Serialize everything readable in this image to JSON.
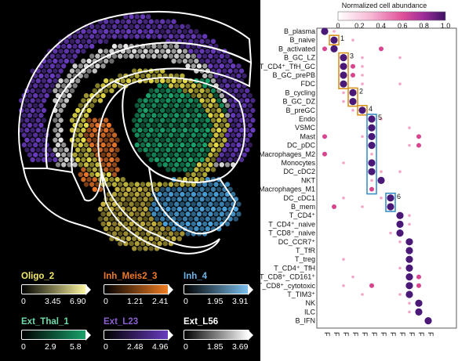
{
  "legends": [
    {
      "title": "Oligo_2",
      "color": "#f4ea6a",
      "ticks": [
        "0",
        "3.45",
        "6.90"
      ],
      "gradient": [
        "#000000",
        "#fff7a0"
      ]
    },
    {
      "title": "Inh_Meis2_3",
      "color": "#f07a2a",
      "ticks": [
        "0",
        "1.21",
        "2.41"
      ],
      "gradient": [
        "#000000",
        "#f37e24"
      ]
    },
    {
      "title": "Inh_4",
      "color": "#6cb4e8",
      "ticks": [
        "0",
        "1.95",
        "3.91"
      ],
      "gradient": [
        "#000000",
        "#7cc1f0"
      ]
    },
    {
      "title": "Ext_Thal_1",
      "color": "#6fd9a8",
      "ticks": [
        "0",
        "2.9",
        "5.8"
      ],
      "gradient": [
        "#000000",
        "#19a36b"
      ]
    },
    {
      "title": "Ext_L23",
      "color": "#8b5fd0",
      "ticks": [
        "0",
        "2.48",
        "4.96"
      ],
      "gradient": [
        "#000000",
        "#6a3cc0"
      ]
    },
    {
      "title": "Ext_L56",
      "color": "#ffffff",
      "ticks": [
        "0",
        "1.85",
        "3.69"
      ],
      "gradient": [
        "#000000",
        "#ffffff"
      ]
    }
  ],
  "colorbar": {
    "title": "Normalized cell abundance",
    "ticks": [
      "0",
      "0.2",
      "0.4",
      "0.6",
      "0.8",
      "1.0"
    ]
  },
  "chart_data": {
    "type": "heatmap",
    "rows": [
      "B_plasma",
      "B_naive",
      "B_activated",
      "B_GC_LZ",
      "T_CD4⁺_TfH_GC",
      "B_GC_prePB",
      "FDC",
      "B_cycling",
      "B_GC_DZ",
      "B_preGC",
      "Endo",
      "VSMC",
      "Mast",
      "DC_pDC",
      "Macrophages_M2",
      "Monocytes",
      "DC_cDC2",
      "NKT",
      "Macrophages_M1",
      "DC_cDC1",
      "B_mem",
      "T_CD4⁺",
      "T_CD4⁺_naive",
      "T_CD8⁺_naive",
      "DC_CCR7⁺",
      "T_TfR",
      "T_treg",
      "T_CD4⁺_TfH",
      "T_CD8⁺_CD161⁺",
      "T_CD8⁺_cytotoxic",
      "T_TIM3⁺",
      "NK",
      "ILC",
      "B_IFN"
    ],
    "columns": [
      "Fact.6",
      "Fact.4",
      "Fact.7",
      "Fact.3",
      "Fact.8",
      "Fact.2",
      "Fact.5",
      "Fact.0",
      "Fact.9",
      "Fact.1",
      "Fact.11",
      "Fact.10"
    ],
    "column_display": [
      "F",
      "F",
      "F",
      "F",
      "F",
      "F",
      "F",
      "F",
      "F",
      "F",
      "F",
      "F"
    ],
    "strong_cells": [
      [
        0,
        0
      ],
      [
        1,
        1
      ],
      [
        2,
        1
      ],
      [
        3,
        2
      ],
      [
        4,
        2
      ],
      [
        5,
        2
      ],
      [
        6,
        2
      ],
      [
        7,
        3
      ],
      [
        8,
        3
      ],
      [
        9,
        4
      ],
      [
        10,
        5
      ],
      [
        11,
        5
      ],
      [
        12,
        5
      ],
      [
        13,
        5
      ],
      [
        15,
        5
      ],
      [
        16,
        5
      ],
      [
        17,
        6
      ],
      [
        19,
        7
      ],
      [
        20,
        7
      ],
      [
        21,
        8
      ],
      [
        22,
        8
      ],
      [
        23,
        8
      ],
      [
        24,
        9
      ],
      [
        25,
        9
      ],
      [
        26,
        9
      ],
      [
        27,
        9
      ],
      [
        28,
        9
      ],
      [
        29,
        9
      ],
      [
        30,
        9
      ],
      [
        31,
        10
      ],
      [
        32,
        10
      ],
      [
        33,
        11
      ]
    ],
    "medium_cells": [
      [
        14,
        0
      ],
      [
        2,
        6
      ],
      [
        12,
        10
      ],
      [
        13,
        10
      ],
      [
        29,
        10
      ],
      [
        28,
        10
      ],
      [
        26,
        9
      ],
      [
        25,
        9
      ],
      [
        20,
        1
      ],
      [
        29,
        5
      ],
      [
        18,
        5
      ],
      [
        2,
        0
      ],
      [
        4,
        3
      ],
      [
        5,
        3
      ],
      [
        12,
        0
      ]
    ],
    "weak_cells": [
      [
        0,
        1
      ],
      [
        1,
        3
      ],
      [
        3,
        4
      ],
      [
        4,
        4
      ],
      [
        5,
        4
      ],
      [
        6,
        4
      ],
      [
        7,
        2
      ],
      [
        8,
        2
      ],
      [
        9,
        3
      ],
      [
        10,
        6
      ],
      [
        12,
        4
      ],
      [
        14,
        5
      ],
      [
        16,
        6
      ],
      [
        17,
        5
      ],
      [
        19,
        6
      ],
      [
        21,
        9
      ],
      [
        22,
        9
      ],
      [
        23,
        7
      ],
      [
        24,
        8
      ],
      [
        27,
        8
      ],
      [
        29,
        2
      ],
      [
        30,
        8
      ],
      [
        31,
        9
      ],
      [
        32,
        9
      ],
      [
        3,
        8
      ],
      [
        6,
        8
      ],
      [
        19,
        2
      ],
      [
        20,
        4
      ],
      [
        15,
        2
      ],
      [
        28,
        3
      ],
      [
        13,
        9
      ],
      [
        11,
        9
      ],
      [
        16,
        8
      ],
      [
        26,
        2
      ],
      [
        30,
        4
      ]
    ],
    "boxes": [
      {
        "label": "1",
        "rows": [
          1,
          1
        ],
        "cols": [
          1,
          1
        ],
        "color": "#d9931b"
      },
      {
        "label": "2",
        "rows": [
          7,
          8
        ],
        "cols": [
          3,
          3
        ],
        "color": "#d9931b"
      },
      {
        "label": "3",
        "rows": [
          3,
          6
        ],
        "cols": [
          2,
          2
        ],
        "color": "#d9931b"
      },
      {
        "label": "4",
        "rows": [
          9,
          9
        ],
        "cols": [
          4,
          4
        ],
        "color": "#d9931b"
      },
      {
        "label": "5",
        "rows": [
          10,
          18
        ],
        "cols": [
          5,
          5
        ],
        "color": "#3a8fc8"
      },
      {
        "label": "6",
        "rows": [
          19,
          20
        ],
        "cols": [
          7,
          7
        ],
        "color": "#3a8fc8"
      }
    ]
  }
}
